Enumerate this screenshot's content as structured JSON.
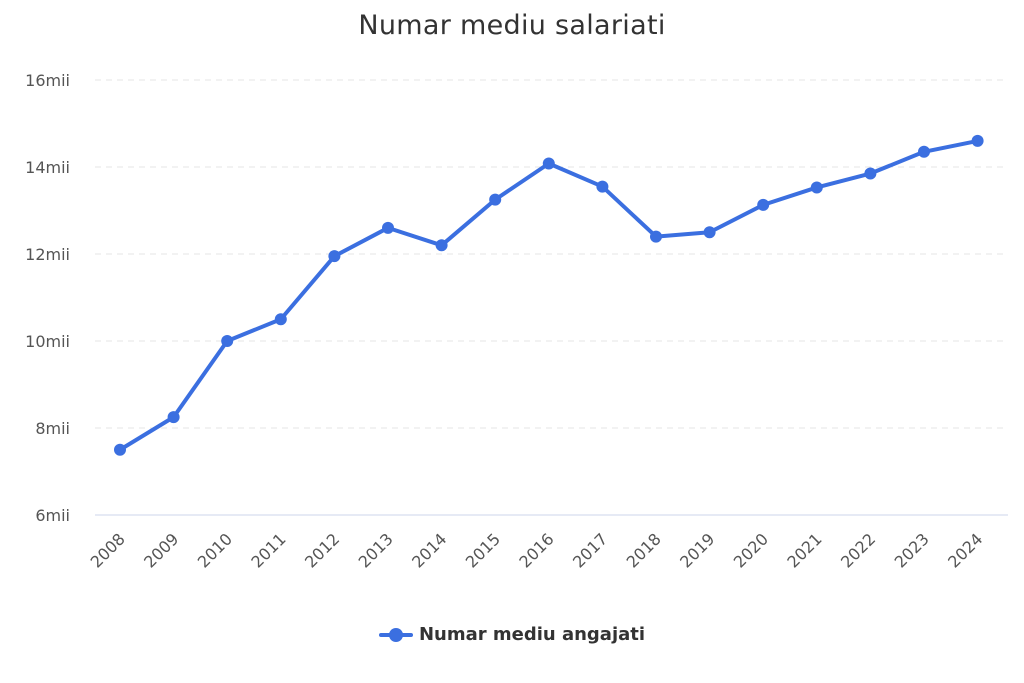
{
  "chart_data": {
    "type": "line",
    "title": "Numar mediu salariati",
    "categories": [
      "2008",
      "2009",
      "2010",
      "2011",
      "2012",
      "2013",
      "2014",
      "2015",
      "2016",
      "2017",
      "2018",
      "2019",
      "2020",
      "2021",
      "2022",
      "2023",
      "2024"
    ],
    "series": [
      {
        "name": "Numar mediu angajati",
        "color": "#3b6fe0",
        "values": [
          7500,
          8250,
          10000,
          10500,
          11950,
          12600,
          12200,
          13250,
          14080,
          13550,
          12400,
          12500,
          13130,
          13530,
          13850,
          14350,
          14600
        ]
      }
    ],
    "ylim": [
      6000,
      16000
    ],
    "yticks": [
      6000,
      8000,
      10000,
      12000,
      14000,
      16000
    ],
    "ytick_labels": [
      "6mii",
      "8mii",
      "10mii",
      "12mii",
      "14mii",
      "16mii"
    ],
    "grid": true,
    "legend_position": "bottom-center"
  }
}
